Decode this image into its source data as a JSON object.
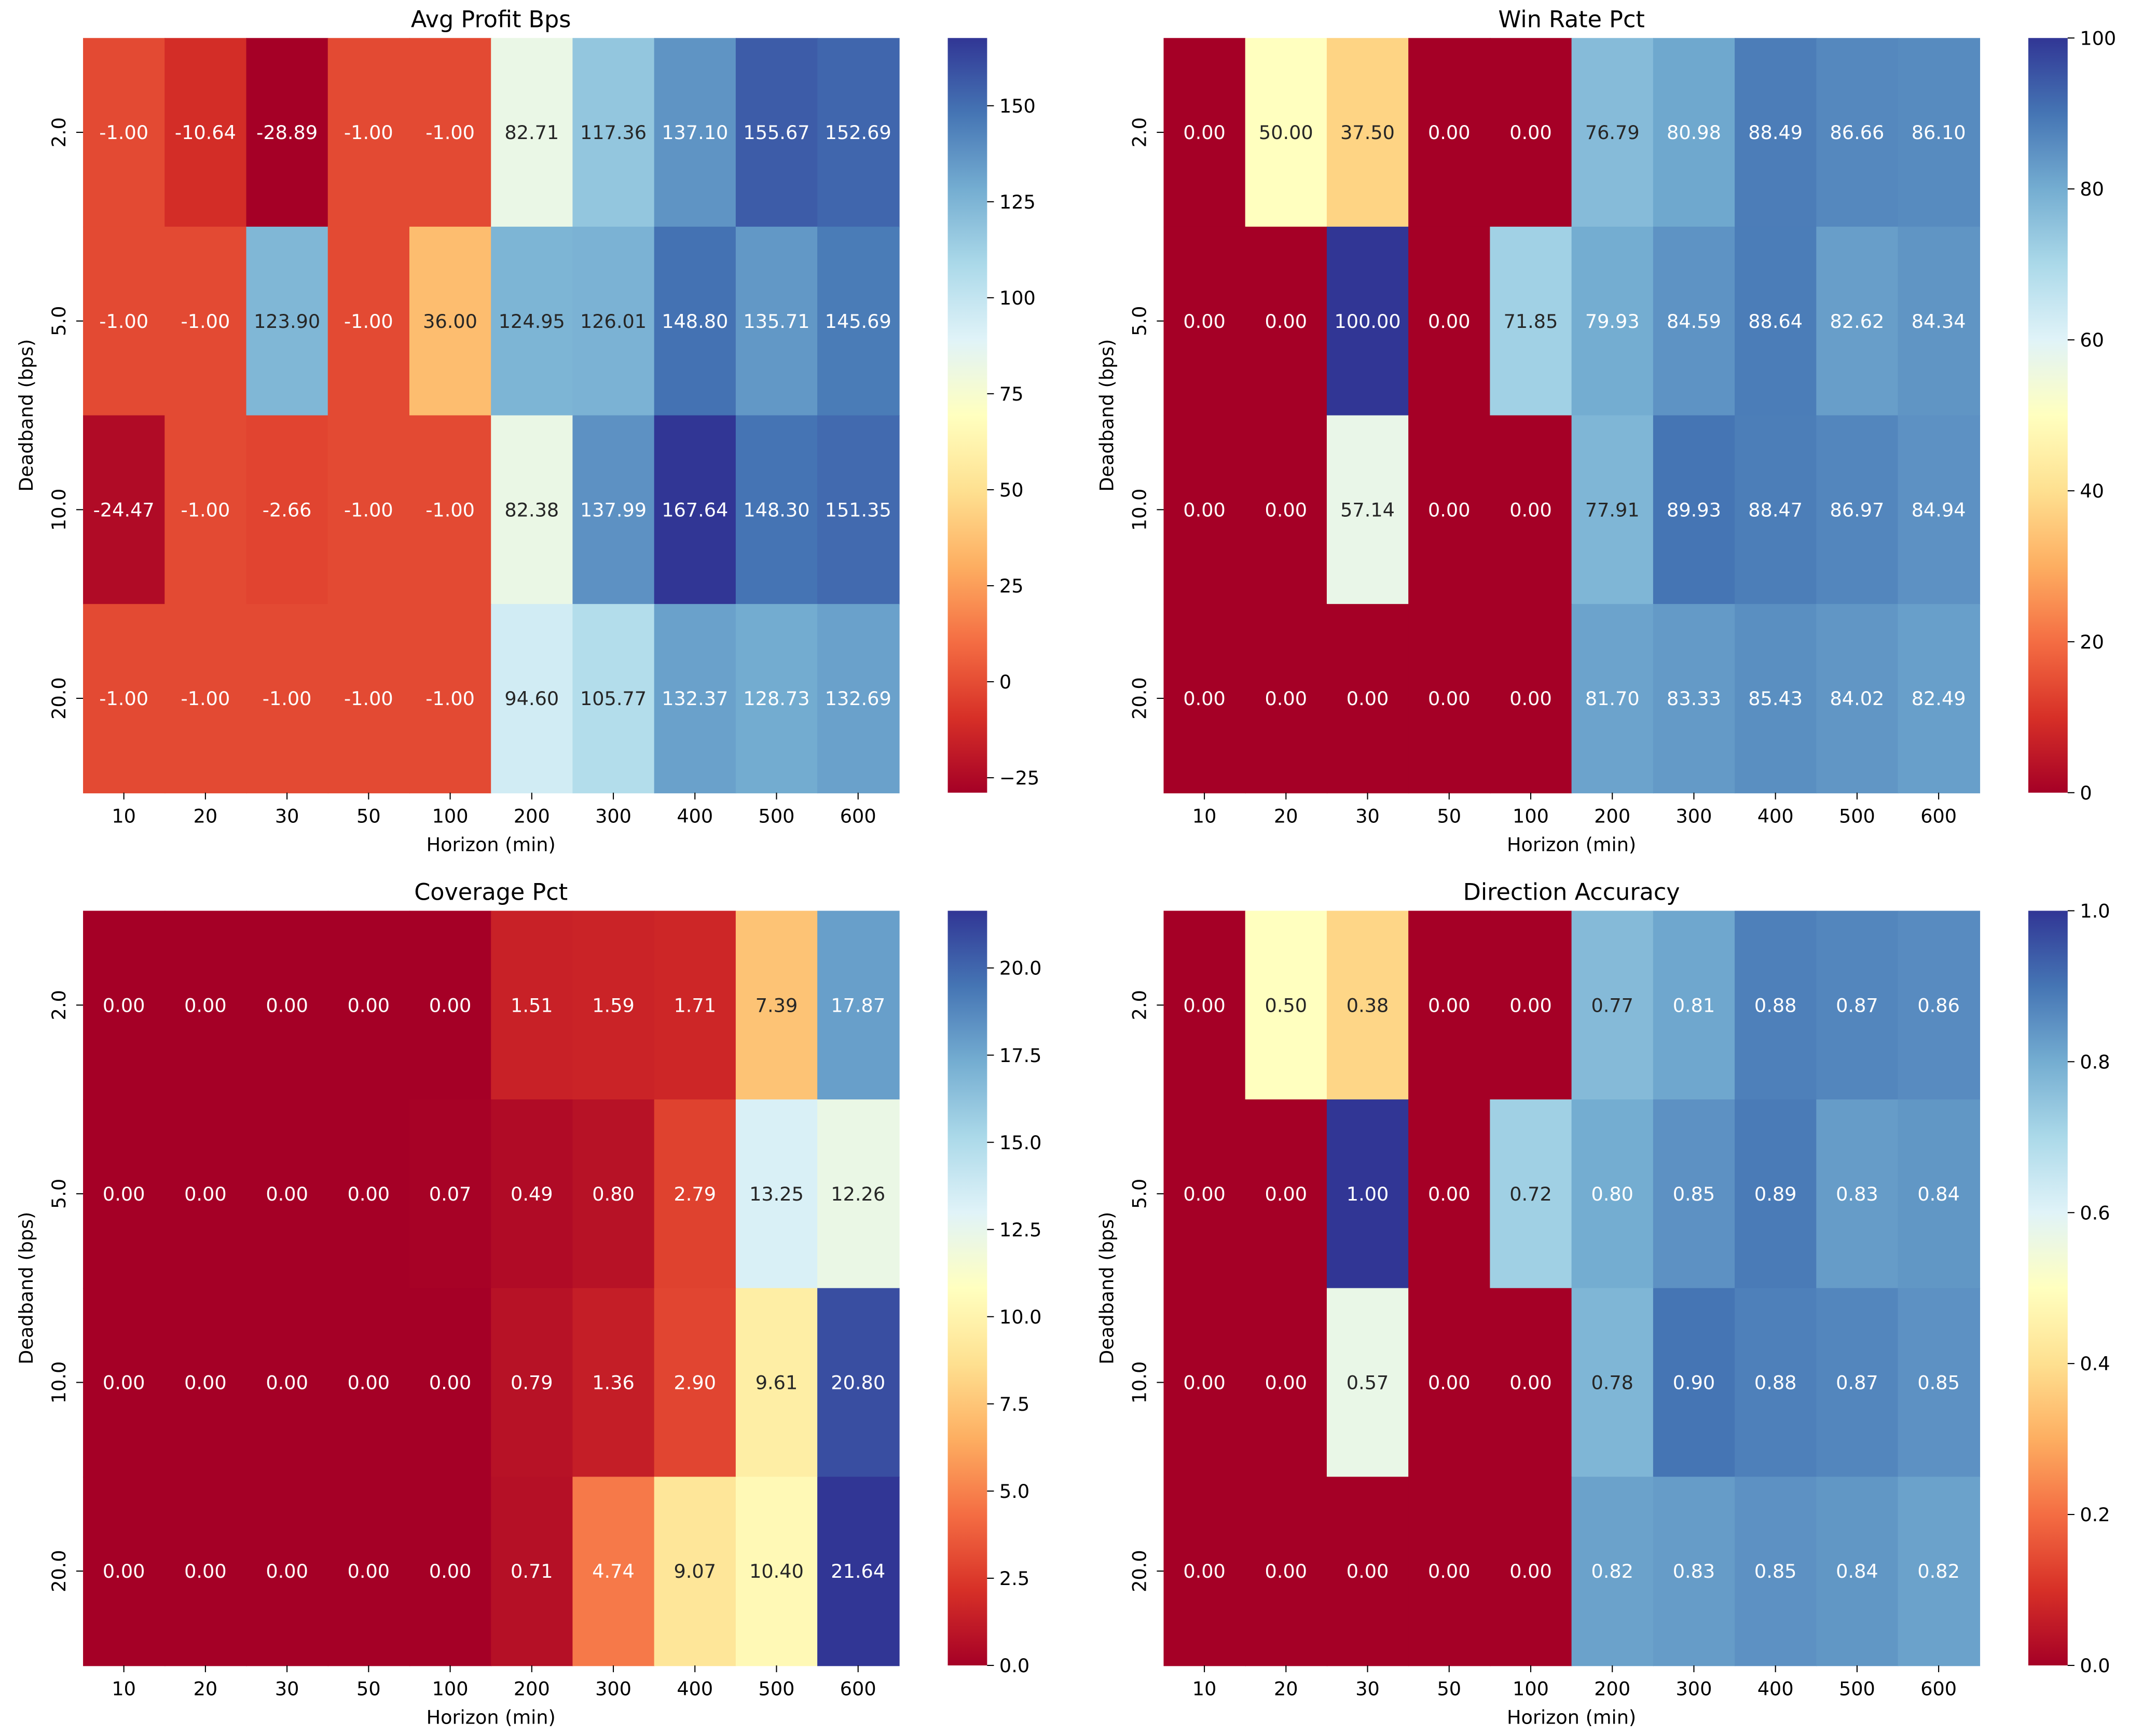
{
  "colormap": "RdYlBu",
  "colormap_stops": [
    "#a50026",
    "#d73027",
    "#f46d43",
    "#fdae61",
    "#fee090",
    "#ffffbf",
    "#e0f3f8",
    "#abd9e9",
    "#74add1",
    "#4575b4",
    "#313695"
  ],
  "chart_data": [
    {
      "type": "heatmap",
      "title": "Avg Profit Bps",
      "xlabel": "Horizon (min)",
      "ylabel": "Deadband (bps)",
      "x": [
        "10",
        "20",
        "30",
        "50",
        "100",
        "200",
        "300",
        "400",
        "500",
        "600"
      ],
      "y": [
        "2.0",
        "5.0",
        "10.0",
        "20.0"
      ],
      "values": [
        [
          -1.0,
          -10.64,
          -28.89,
          -1.0,
          -1.0,
          82.71,
          117.36,
          137.1,
          155.67,
          152.69
        ],
        [
          -1.0,
          -1.0,
          123.9,
          -1.0,
          36.0,
          124.95,
          126.01,
          148.8,
          135.71,
          145.69
        ],
        [
          -24.47,
          -1.0,
          -2.66,
          -1.0,
          -1.0,
          82.38,
          137.99,
          167.64,
          148.3,
          151.35
        ],
        [
          -1.0,
          -1.0,
          -1.0,
          -1.0,
          -1.0,
          94.6,
          105.77,
          132.37,
          128.73,
          132.69
        ]
      ],
      "vmin": -28.89,
      "vmax": 167.64,
      "colorbar_ticks": [
        -25,
        0,
        25,
        50,
        75,
        100,
        125,
        150
      ],
      "colorbar_labels": [
        "−25",
        "0",
        "25",
        "50",
        "75",
        "100",
        "125",
        "150"
      ]
    },
    {
      "type": "heatmap",
      "title": "Win Rate Pct",
      "xlabel": "Horizon (min)",
      "ylabel": "Deadband (bps)",
      "x": [
        "10",
        "20",
        "30",
        "50",
        "100",
        "200",
        "300",
        "400",
        "500",
        "600"
      ],
      "y": [
        "2.0",
        "5.0",
        "10.0",
        "20.0"
      ],
      "values": [
        [
          0.0,
          50.0,
          37.5,
          0.0,
          0.0,
          76.79,
          80.98,
          88.49,
          86.66,
          86.1
        ],
        [
          0.0,
          0.0,
          100.0,
          0.0,
          71.85,
          79.93,
          84.59,
          88.64,
          82.62,
          84.34
        ],
        [
          0.0,
          0.0,
          57.14,
          0.0,
          0.0,
          77.91,
          89.93,
          88.47,
          86.97,
          84.94
        ],
        [
          0.0,
          0.0,
          0.0,
          0.0,
          0.0,
          81.7,
          83.33,
          85.43,
          84.02,
          82.49
        ]
      ],
      "vmin": 0,
      "vmax": 100,
      "colorbar_ticks": [
        0,
        20,
        40,
        60,
        80,
        100
      ],
      "colorbar_labels": [
        "0",
        "20",
        "40",
        "60",
        "80",
        "100"
      ]
    },
    {
      "type": "heatmap",
      "title": "Coverage Pct",
      "xlabel": "Horizon (min)",
      "ylabel": "Deadband (bps)",
      "x": [
        "10",
        "20",
        "30",
        "50",
        "100",
        "200",
        "300",
        "400",
        "500",
        "600"
      ],
      "y": [
        "2.0",
        "5.0",
        "10.0",
        "20.0"
      ],
      "values": [
        [
          0.0,
          0.0,
          0.0,
          0.0,
          0.0,
          1.51,
          1.59,
          1.71,
          7.39,
          17.87
        ],
        [
          0.0,
          0.0,
          0.0,
          0.0,
          0.07,
          0.49,
          0.8,
          2.79,
          13.25,
          12.26
        ],
        [
          0.0,
          0.0,
          0.0,
          0.0,
          0.0,
          0.79,
          1.36,
          2.9,
          9.61,
          20.8
        ],
        [
          0.0,
          0.0,
          0.0,
          0.0,
          0.0,
          0.71,
          4.74,
          9.07,
          10.4,
          21.64
        ]
      ],
      "vmin": 0,
      "vmax": 21.64,
      "colorbar_ticks": [
        0,
        2.5,
        5,
        7.5,
        10,
        12.5,
        15,
        17.5,
        20
      ],
      "colorbar_labels": [
        "0.0",
        "2.5",
        "5.0",
        "7.5",
        "10.0",
        "12.5",
        "15.0",
        "17.5",
        "20.0"
      ]
    },
    {
      "type": "heatmap",
      "title": "Direction Accuracy",
      "xlabel": "Horizon (min)",
      "ylabel": "Deadband (bps)",
      "x": [
        "10",
        "20",
        "30",
        "50",
        "100",
        "200",
        "300",
        "400",
        "500",
        "600"
      ],
      "y": [
        "2.0",
        "5.0",
        "10.0",
        "20.0"
      ],
      "values": [
        [
          0.0,
          0.5,
          0.38,
          0.0,
          0.0,
          0.77,
          0.81,
          0.88,
          0.87,
          0.86
        ],
        [
          0.0,
          0.0,
          1.0,
          0.0,
          0.72,
          0.8,
          0.85,
          0.89,
          0.83,
          0.84
        ],
        [
          0.0,
          0.0,
          0.57,
          0.0,
          0.0,
          0.78,
          0.9,
          0.88,
          0.87,
          0.85
        ],
        [
          0.0,
          0.0,
          0.0,
          0.0,
          0.0,
          0.82,
          0.83,
          0.85,
          0.84,
          0.82
        ]
      ],
      "vmin": 0,
      "vmax": 1,
      "colorbar_ticks": [
        0,
        0.2,
        0.4,
        0.6,
        0.8,
        1.0
      ],
      "colorbar_labels": [
        "0.0",
        "0.2",
        "0.4",
        "0.6",
        "0.8",
        "1.0"
      ]
    }
  ]
}
